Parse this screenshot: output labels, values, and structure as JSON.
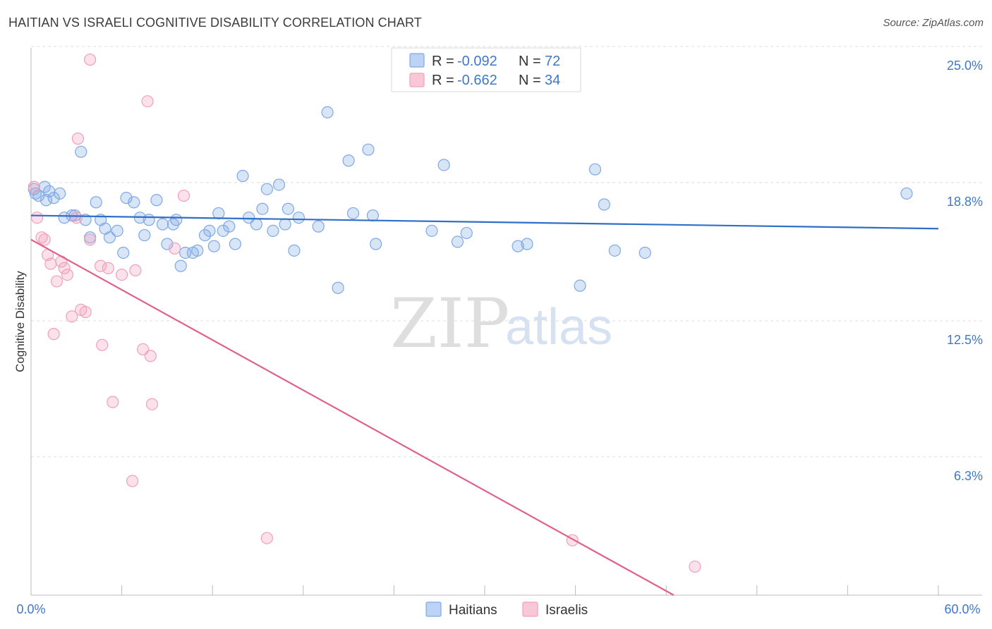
{
  "header": {
    "title": "HAITIAN VS ISRAELI COGNITIVE DISABILITY CORRELATION CHART",
    "source": "Source: ZipAtlas.com"
  },
  "watermark": {
    "zip": "ZIP",
    "atlas": "atlas"
  },
  "legend": {
    "rows": [
      {
        "r_label": "R =",
        "r_value": "-0.092",
        "n_label": "N =",
        "n_value": "72",
        "color": "#7ea9e6"
      },
      {
        "r_label": "R =",
        "r_value": "-0.662",
        "n_label": "N =",
        "n_value": "34",
        "color": "#f2a0ba"
      }
    ]
  },
  "bottom_legend": {
    "items": [
      "Haitians",
      "Israelis"
    ]
  },
  "chart_data": {
    "type": "scatter",
    "title": "HAITIAN VS ISRAELI COGNITIVE DISABILITY CORRELATION CHART",
    "ylabel": "Cognitive Disability",
    "xlabel": "",
    "xlim": [
      0,
      60
    ],
    "ylim": [
      0,
      25.8
    ],
    "x_tick_labels": [
      "0.0%",
      "60.0%"
    ],
    "y_tick_labels": [
      "6.3%",
      "12.5%",
      "18.8%",
      "25.0%"
    ],
    "y_ticks": [
      6.3,
      12.5,
      18.8,
      25.0
    ],
    "grid": true,
    "legend_position": "top-center",
    "series": [
      {
        "name": "Haitians",
        "color": "#7ea9e6",
        "line_color": "#2f6fc8",
        "trend": {
          "x": [
            0,
            60
          ],
          "y": [
            17.3,
            16.7
          ]
        },
        "points": [
          [
            0.2,
            18.5
          ],
          [
            0.5,
            18.2
          ],
          [
            0.9,
            18.6
          ],
          [
            1.2,
            18.4
          ],
          [
            1.5,
            18.1
          ],
          [
            1.9,
            18.3
          ],
          [
            2.2,
            17.2
          ],
          [
            2.7,
            17.3
          ],
          [
            2.9,
            17.3
          ],
          [
            3.3,
            20.2
          ],
          [
            3.6,
            17.1
          ],
          [
            3.9,
            16.3
          ],
          [
            4.3,
            17.9
          ],
          [
            4.6,
            17.1
          ],
          [
            4.9,
            16.7
          ],
          [
            5.2,
            16.3
          ],
          [
            5.7,
            16.6
          ],
          [
            6.1,
            15.6
          ],
          [
            6.3,
            18.1
          ],
          [
            6.8,
            17.9
          ],
          [
            7.2,
            17.2
          ],
          [
            7.5,
            16.4
          ],
          [
            7.8,
            17.1
          ],
          [
            8.3,
            18.0
          ],
          [
            8.7,
            16.9
          ],
          [
            9.0,
            16.0
          ],
          [
            9.4,
            16.9
          ],
          [
            9.6,
            17.1
          ],
          [
            9.9,
            15.0
          ],
          [
            10.2,
            15.6
          ],
          [
            10.7,
            15.6
          ],
          [
            11.0,
            15.7
          ],
          [
            11.5,
            16.4
          ],
          [
            11.8,
            16.6
          ],
          [
            12.1,
            15.9
          ],
          [
            12.4,
            17.4
          ],
          [
            12.7,
            16.6
          ],
          [
            13.1,
            16.8
          ],
          [
            13.5,
            16.0
          ],
          [
            14.0,
            19.1
          ],
          [
            14.4,
            17.2
          ],
          [
            14.9,
            16.9
          ],
          [
            15.3,
            17.6
          ],
          [
            15.6,
            18.5
          ],
          [
            16.0,
            16.6
          ],
          [
            16.4,
            18.7
          ],
          [
            16.8,
            16.9
          ],
          [
            17.0,
            17.6
          ],
          [
            17.4,
            15.7
          ],
          [
            17.7,
            17.2
          ],
          [
            19.0,
            16.8
          ],
          [
            19.6,
            22.0
          ],
          [
            20.3,
            14.0
          ],
          [
            21.0,
            19.8
          ],
          [
            21.3,
            17.4
          ],
          [
            22.3,
            20.3
          ],
          [
            22.6,
            17.3
          ],
          [
            22.8,
            16.0
          ],
          [
            26.5,
            16.6
          ],
          [
            27.3,
            19.6
          ],
          [
            28.2,
            16.1
          ],
          [
            28.8,
            16.5
          ],
          [
            32.2,
            15.9
          ],
          [
            32.8,
            16.0
          ],
          [
            36.3,
            14.1
          ],
          [
            37.3,
            19.4
          ],
          [
            37.9,
            17.8
          ],
          [
            38.6,
            15.7
          ],
          [
            40.6,
            15.6
          ],
          [
            57.9,
            18.3
          ],
          [
            0.3,
            18.3
          ],
          [
            1.0,
            18.0
          ]
        ]
      },
      {
        "name": "Israelis",
        "color": "#f2a0ba",
        "line_color": "#e0608e",
        "trend": {
          "x": [
            0,
            42.5
          ],
          "y": [
            16.2,
            0
          ]
        },
        "points": [
          [
            0.2,
            18.6
          ],
          [
            0.4,
            17.2
          ],
          [
            0.7,
            16.3
          ],
          [
            0.9,
            16.2
          ],
          [
            1.1,
            15.5
          ],
          [
            1.3,
            15.1
          ],
          [
            1.5,
            11.9
          ],
          [
            1.7,
            14.3
          ],
          [
            2.0,
            15.2
          ],
          [
            2.2,
            14.9
          ],
          [
            2.4,
            14.6
          ],
          [
            2.7,
            12.7
          ],
          [
            3.0,
            17.2
          ],
          [
            3.1,
            20.8
          ],
          [
            3.3,
            13.0
          ],
          [
            3.6,
            12.9
          ],
          [
            3.9,
            24.4
          ],
          [
            3.9,
            16.2
          ],
          [
            4.6,
            15.0
          ],
          [
            4.7,
            11.4
          ],
          [
            5.1,
            14.9
          ],
          [
            5.4,
            8.8
          ],
          [
            6.0,
            14.6
          ],
          [
            6.7,
            5.2
          ],
          [
            6.9,
            14.8
          ],
          [
            7.4,
            11.2
          ],
          [
            7.7,
            22.5
          ],
          [
            7.9,
            10.9
          ],
          [
            8.0,
            8.7
          ],
          [
            9.5,
            15.8
          ],
          [
            10.1,
            18.2
          ],
          [
            15.6,
            2.6
          ],
          [
            35.8,
            2.5
          ],
          [
            43.9,
            1.3
          ]
        ]
      }
    ]
  }
}
